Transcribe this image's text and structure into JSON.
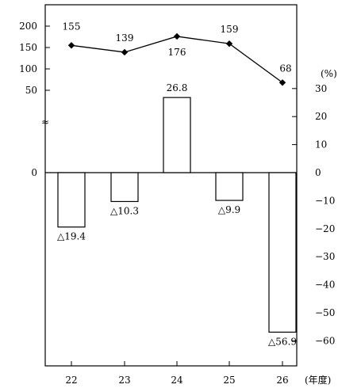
{
  "chart_data": {
    "type": "bar+line",
    "categories": [
      "22",
      "23",
      "24",
      "25",
      "26"
    ],
    "x_unit": "(年度)",
    "line": {
      "values": [
        155,
        139,
        176,
        159,
        68
      ],
      "labels": [
        "155",
        "139",
        "176",
        "159",
        "68"
      ],
      "axis_ticks": [
        "200",
        "150",
        "100",
        "50"
      ],
      "ylim": [
        50,
        200
      ]
    },
    "bars": {
      "values": [
        -19.4,
        -10.3,
        26.8,
        -9.9,
        -56.9
      ],
      "labels": [
        "△19.4",
        "△10.3",
        "26.8",
        "△9.9",
        "△56.9"
      ],
      "ylim": [
        -60,
        30
      ],
      "right_ticks": [
        "30",
        "20",
        "10",
        "0",
        "−10",
        "−20",
        "−30",
        "−40",
        "−50",
        "−60"
      ],
      "right_unit": "(%)"
    },
    "left_zero": "0",
    "axis_break_symbol": "≈"
  }
}
